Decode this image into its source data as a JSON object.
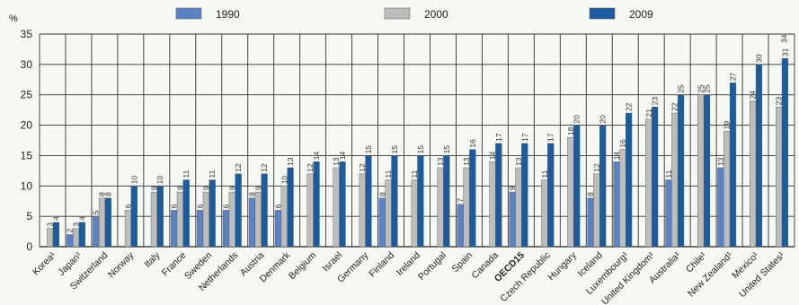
{
  "chart_data": {
    "type": "bar",
    "ylabel": "%",
    "ylim": [
      0,
      35
    ],
    "yticks": [
      "0",
      "5",
      "10",
      "15",
      "20",
      "25",
      "30",
      "35"
    ],
    "grid": true,
    "legend_position": "top",
    "colors": {
      "1990": "#5b83c4",
      "2000": "#bdbdbb",
      "2009": "#1c5c9e",
      "background": "#f6f8f3"
    },
    "categories": [
      "Korea¹",
      "Japan¹",
      "Switzerland",
      "Norway",
      "Italy",
      "France",
      "Sweden",
      "Netherlands",
      "Austria",
      "Denmark",
      "Belgium",
      "Israel",
      "Germany",
      "Finland",
      "Ireland",
      "Portugal",
      "Spain",
      "Canada",
      "OECD15",
      "Czech Republic",
      "Hungary",
      "Iceland",
      "Luxembourg¹",
      "United Kingdom¹",
      "Australia¹",
      "Chile¹",
      "New Zealand¹",
      "Mexico¹",
      "United States¹"
    ],
    "series": [
      {
        "name": "1990",
        "values": [
          null,
          2,
          5,
          null,
          null,
          6,
          6,
          6,
          8,
          6,
          null,
          null,
          null,
          8,
          null,
          null,
          7,
          null,
          9,
          null,
          null,
          8,
          14,
          null,
          11,
          null,
          13,
          null,
          null
        ],
        "labels": [
          "",
          "2",
          "5",
          "",
          "",
          "6",
          "6",
          "6",
          "8",
          "6",
          "",
          "",
          "",
          "8",
          "",
          "",
          "7",
          "",
          "9",
          "",
          "",
          "8",
          "14",
          "",
          "11",
          "",
          "13",
          "",
          ""
        ]
      },
      {
        "name": "2000",
        "values": [
          3,
          3,
          8,
          6,
          9,
          9,
          9,
          9,
          9,
          10,
          12,
          13,
          12,
          11,
          11,
          13,
          13,
          14,
          13,
          11,
          18,
          12,
          16,
          21,
          22,
          25,
          19,
          24,
          23
        ],
        "labels": [
          "3",
          "3",
          "8",
          "6",
          "9",
          "9",
          "9",
          "9",
          "9",
          "10",
          "12",
          "13",
          "12",
          "11",
          "11",
          "13",
          "13",
          "14",
          "13",
          "11",
          "18",
          "12",
          "16",
          "21",
          "22",
          "25",
          "19",
          "24",
          "23"
        ]
      },
      {
        "name": "2009",
        "values": [
          4,
          4,
          8,
          10,
          10,
          11,
          11,
          12,
          12,
          13,
          14,
          14,
          15,
          15,
          15,
          15,
          16,
          17,
          17,
          17,
          20,
          20,
          22,
          23,
          25,
          25,
          27,
          30,
          31
        ],
        "labels": [
          "4",
          "4",
          "8",
          "10",
          "10",
          "11",
          "11",
          "12",
          "12",
          "13",
          "14",
          "14",
          "15",
          "15",
          "15",
          "15",
          "16",
          "17",
          "17",
          "17",
          "20",
          "20",
          "22",
          "23",
          "25",
          "25",
          "27",
          "30",
          "31"
        ]
      }
    ],
    "extra_data_labels": [
      {
        "category": "United States¹",
        "text": "34"
      }
    ],
    "highlight_category": "OECD15"
  }
}
